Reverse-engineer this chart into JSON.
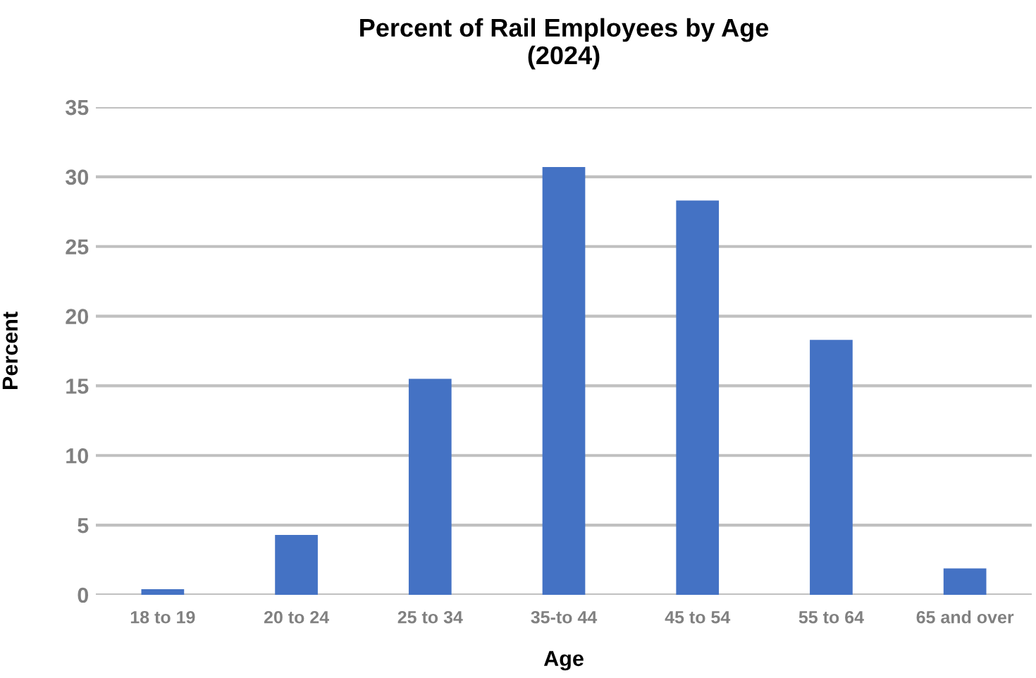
{
  "chart_data": {
    "type": "bar",
    "title": "Percent of Rail Employees by Age\n(2024)",
    "xlabel": "Age",
    "ylabel": "Percent",
    "categories": [
      "18 to 19",
      "20 to 24",
      "25 to 34",
      "35-to 44",
      "45 to 54",
      "55 to 64",
      "65 and over"
    ],
    "values": [
      0.4,
      4.3,
      15.5,
      30.7,
      28.3,
      18.3,
      1.9
    ],
    "color": "#4472c4",
    "ylim": [
      0,
      35
    ],
    "yticks": [
      0,
      5,
      10,
      15,
      20,
      25,
      30,
      35
    ],
    "grid": "y",
    "legend": false
  }
}
